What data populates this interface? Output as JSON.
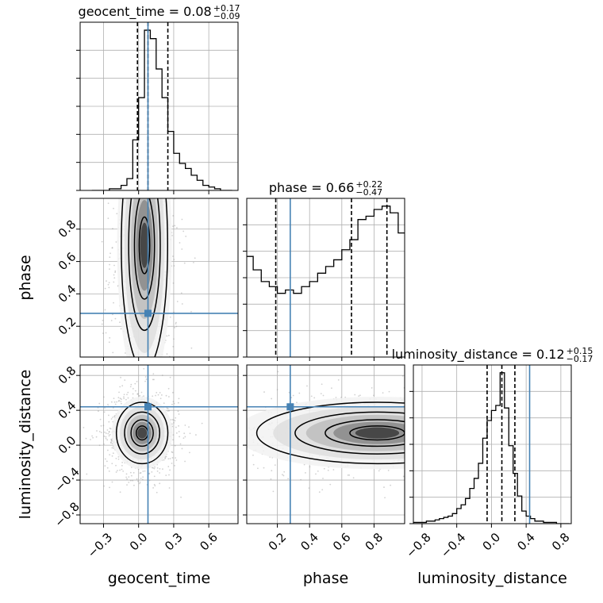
{
  "chart_data": {
    "type": "corner",
    "parameters": [
      "geocent_time",
      "phase",
      "luminosity_distance"
    ],
    "axis_labels": [
      "geocent_time",
      "phase",
      "luminosity_distance"
    ],
    "ranges": {
      "geocent_time": [
        -0.5,
        0.85
      ],
      "phase": [
        0.01,
        0.99
      ],
      "luminosity_distance": [
        -0.9,
        0.92
      ]
    },
    "ticks": {
      "geocent_time": [
        -0.3,
        0.0,
        0.3,
        0.6
      ],
      "phase": [
        0.2,
        0.4,
        0.6,
        0.8
      ],
      "luminosity_distance": [
        -0.8,
        -0.4,
        0.0,
        0.4,
        0.8
      ]
    },
    "tick_labels": {
      "geocent_time": [
        "−0.3",
        "0.0",
        "0.3",
        "0.6"
      ],
      "phase": [
        "0.2",
        "0.4",
        "0.6",
        "0.8"
      ],
      "luminosity_distance": [
        "−0.8",
        "−0.4",
        "0.0",
        "0.4",
        "0.8"
      ]
    },
    "truths": {
      "geocent_time": 0.08,
      "phase": 0.28,
      "luminosity_distance": 0.44
    },
    "truth_color": "#4682b4",
    "titles": [
      {
        "param": "geocent_time",
        "text": "geocent_time = 0.08",
        "sup": "+0.17",
        "sub": "−0.09"
      },
      {
        "param": "phase",
        "text": "phase = 0.66",
        "sup": "+0.22",
        "sub": "−0.47"
      },
      {
        "param": "luminosity_distance",
        "text": "luminosity_distance = 0.12",
        "sup": "+0.15",
        "sub": "−0.17"
      }
    ],
    "quantiles": {
      "geocent_time": [
        -0.01,
        0.08,
        0.25
      ],
      "phase": [
        0.19,
        0.66,
        0.88
      ],
      "luminosity_distance": [
        -0.05,
        0.12,
        0.27
      ]
    },
    "histograms": {
      "geocent_time": {
        "bin_edges": [
          -0.4,
          -0.35,
          -0.3,
          -0.25,
          -0.2,
          -0.15,
          -0.1,
          -0.05,
          0.0,
          0.05,
          0.1,
          0.15,
          0.2,
          0.25,
          0.3,
          0.35,
          0.4,
          0.45,
          0.5,
          0.55,
          0.6,
          0.65,
          0.7,
          0.75,
          0.8
        ],
        "counts": [
          0,
          0,
          0,
          1,
          1,
          3,
          7,
          30,
          55,
          95,
          90,
          72,
          55,
          35,
          22,
          16,
          13,
          9,
          6,
          3,
          2,
          1,
          0,
          0
        ]
      },
      "phase": {
        "bin_edges": [
          0.0,
          0.05,
          0.1,
          0.15,
          0.2,
          0.25,
          0.3,
          0.35,
          0.4,
          0.45,
          0.5,
          0.55,
          0.6,
          0.65,
          0.7,
          0.75,
          0.8,
          0.85,
          0.9,
          0.95,
          1.0
        ],
        "counts": [
          60,
          52,
          45,
          42,
          38,
          40,
          38,
          42,
          45,
          50,
          54,
          58,
          64,
          70,
          82,
          84,
          88,
          90,
          86,
          74
        ]
      },
      "luminosity_distance": {
        "bin_edges": [
          -0.9,
          -0.8,
          -0.75,
          -0.7,
          -0.65,
          -0.6,
          -0.55,
          -0.5,
          -0.45,
          -0.4,
          -0.35,
          -0.3,
          -0.25,
          -0.2,
          -0.15,
          -0.1,
          -0.05,
          0.0,
          0.05,
          0.1,
          0.15,
          0.2,
          0.25,
          0.3,
          0.35,
          0.4,
          0.45,
          0.5,
          0.55,
          0.6,
          0.65,
          0.7,
          0.75,
          0.8,
          0.85,
          0.9
        ],
        "counts": [
          1,
          1,
          2,
          2,
          3,
          4,
          5,
          6,
          8,
          12,
          15,
          20,
          28,
          36,
          48,
          68,
          82,
          90,
          94,
          120,
          92,
          62,
          40,
          22,
          10,
          6,
          4,
          2,
          2,
          1,
          1,
          1,
          0,
          0,
          0
        ]
      }
    },
    "contour_levels": [
      0.118,
      0.393,
      0.675,
      0.864
    ],
    "density_blobs": [
      {
        "x": "geocent_time",
        "y": "phase",
        "mx": 0.05,
        "my": 0.7,
        "sx": 0.09,
        "sy": 0.35
      },
      {
        "x": "geocent_time",
        "y": "luminosity_distance",
        "mx": 0.03,
        "my": 0.14,
        "sx": 0.1,
        "sy": 0.16
      },
      {
        "x": "phase",
        "y": "luminosity_distance",
        "mx": 0.82,
        "my": 0.14,
        "sx": 0.34,
        "sy": 0.16
      }
    ],
    "grid": true
  }
}
